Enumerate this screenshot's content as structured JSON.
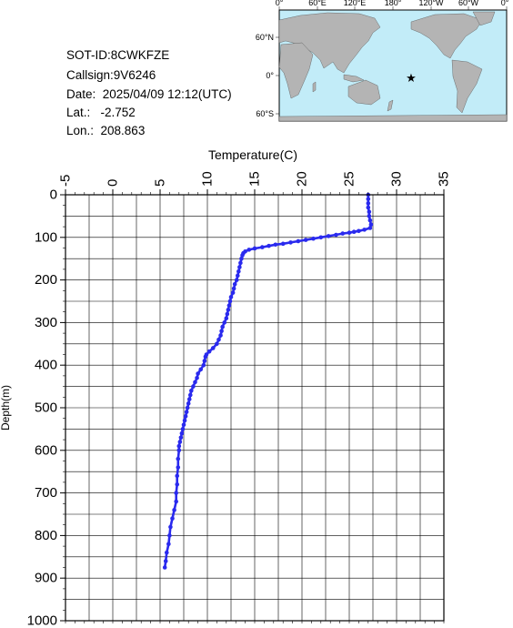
{
  "info": {
    "sot_id": "SOT-ID:8CWKFZE",
    "callsign": "Callsign:9V6246",
    "date": "Date:  2025/04/09 12:12(UTC)",
    "lat": "Lat.:   -2.752",
    "lon": "Lon.:  208.863"
  },
  "map": {
    "lon_ticks": [
      "0°",
      "60°E",
      "120°E",
      "180°",
      "120°W",
      "60°W",
      "0°"
    ],
    "lat_ticks": [
      "60°N",
      "0°",
      "60°S"
    ],
    "ocean_color": "#c2ecf8",
    "land_color": "#b4b4b4",
    "marker": {
      "lon": 208.863,
      "lat": -2.752,
      "color": "#ff0000",
      "symbol": "star"
    }
  },
  "chart_data": {
    "type": "scatter",
    "xlabel": "Temperature(C)",
    "ylabel": "Depth(m)",
    "xlim": [
      -5,
      35
    ],
    "ylim": [
      0,
      1000
    ],
    "y_inverted": true,
    "x_axis_position": "top",
    "x_ticks": [
      -5,
      0,
      5,
      10,
      15,
      20,
      25,
      30,
      35
    ],
    "y_ticks": [
      0,
      100,
      200,
      300,
      400,
      500,
      600,
      700,
      800,
      900,
      1000
    ],
    "x_tick_labels": [
      "-5",
      "0",
      "5",
      "10",
      "15",
      "20",
      "25",
      "30",
      "35"
    ],
    "y_tick_labels": [
      "0",
      "100",
      "200",
      "300",
      "400",
      "500",
      "600",
      "700",
      "800",
      "900",
      "1000"
    ],
    "grid": true,
    "series_color": "#2a2aee",
    "points": [
      [
        27.0,
        0
      ],
      [
        27.0,
        10
      ],
      [
        27.0,
        20
      ],
      [
        27.0,
        30
      ],
      [
        27.1,
        40
      ],
      [
        27.1,
        50
      ],
      [
        27.2,
        60
      ],
      [
        27.3,
        70
      ],
      [
        27.2,
        78
      ],
      [
        26.6,
        82
      ],
      [
        26.0,
        85
      ],
      [
        25.5,
        87
      ],
      [
        25.0,
        89
      ],
      [
        24.3,
        91
      ],
      [
        23.6,
        94
      ],
      [
        22.8,
        97
      ],
      [
        22.0,
        100
      ],
      [
        21.2,
        103
      ],
      [
        20.4,
        106
      ],
      [
        19.6,
        109
      ],
      [
        18.8,
        112
      ],
      [
        18.0,
        115
      ],
      [
        17.2,
        117
      ],
      [
        16.5,
        120
      ],
      [
        15.8,
        123
      ],
      [
        15.0,
        126
      ],
      [
        14.4,
        129
      ],
      [
        14.0,
        133
      ],
      [
        13.8,
        137
      ],
      [
        13.7,
        142
      ],
      [
        13.6,
        150
      ],
      [
        13.5,
        160
      ],
      [
        13.4,
        170
      ],
      [
        13.3,
        180
      ],
      [
        13.2,
        190
      ],
      [
        13.1,
        200
      ],
      [
        12.9,
        210
      ],
      [
        12.8,
        220
      ],
      [
        12.7,
        230
      ],
      [
        12.5,
        240
      ],
      [
        12.4,
        250
      ],
      [
        12.3,
        260
      ],
      [
        12.2,
        270
      ],
      [
        12.1,
        280
      ],
      [
        12.0,
        290
      ],
      [
        11.8,
        300
      ],
      [
        11.6,
        310
      ],
      [
        11.5,
        320
      ],
      [
        11.4,
        330
      ],
      [
        11.2,
        340
      ],
      [
        11.0,
        350
      ],
      [
        10.6,
        360
      ],
      [
        10.2,
        368
      ],
      [
        9.9,
        375
      ],
      [
        9.8,
        380
      ],
      [
        9.7,
        390
      ],
      [
        9.6,
        400
      ],
      [
        9.3,
        410
      ],
      [
        9.0,
        420
      ],
      [
        8.9,
        430
      ],
      [
        8.7,
        440
      ],
      [
        8.5,
        450
      ],
      [
        8.3,
        460
      ],
      [
        8.2,
        470
      ],
      [
        8.1,
        480
      ],
      [
        8.0,
        490
      ],
      [
        7.9,
        500
      ],
      [
        7.8,
        510
      ],
      [
        7.7,
        520
      ],
      [
        7.6,
        530
      ],
      [
        7.5,
        540
      ],
      [
        7.4,
        550
      ],
      [
        7.3,
        560
      ],
      [
        7.2,
        570
      ],
      [
        7.1,
        580
      ],
      [
        7.0,
        590
      ],
      [
        7.0,
        600
      ],
      [
        6.9,
        620
      ],
      [
        6.9,
        640
      ],
      [
        6.8,
        660
      ],
      [
        6.8,
        680
      ],
      [
        6.7,
        700
      ],
      [
        6.7,
        720
      ],
      [
        6.5,
        740
      ],
      [
        6.3,
        760
      ],
      [
        6.1,
        780
      ],
      [
        6.0,
        800
      ],
      [
        5.9,
        820
      ],
      [
        5.7,
        840
      ],
      [
        5.6,
        860
      ],
      [
        5.5,
        875
      ]
    ]
  }
}
